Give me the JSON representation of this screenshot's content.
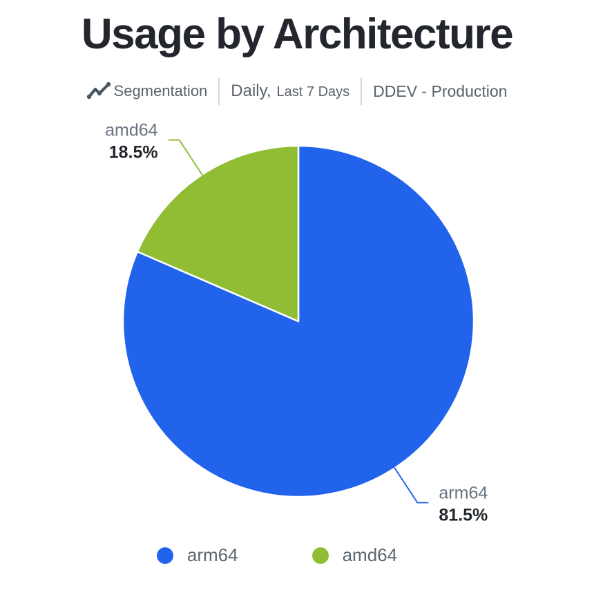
{
  "page": {
    "title": "Usage by Architecture"
  },
  "subtitle": {
    "icon": "trend-line-icon",
    "segmentation_label": "Segmentation",
    "period_prefix": "Daily,",
    "period_range": "Last 7 Days",
    "environment": "DDEV - Production"
  },
  "chart_data": {
    "type": "pie",
    "title": "Usage by Architecture",
    "labels": [
      "arm64",
      "amd64"
    ],
    "values": [
      81.5,
      18.5
    ],
    "value_labels": [
      "81.5%",
      "18.5%"
    ],
    "colors": [
      "#2263ec",
      "#90bd34"
    ],
    "slice_border_color": "#ffffff",
    "start_angle": "top",
    "direction": "clockwise",
    "legend": [
      "arm64",
      "amd64"
    ],
    "legend_position": "bottom",
    "name_label_color": "#687280",
    "percent_label_color": "#22262c"
  }
}
